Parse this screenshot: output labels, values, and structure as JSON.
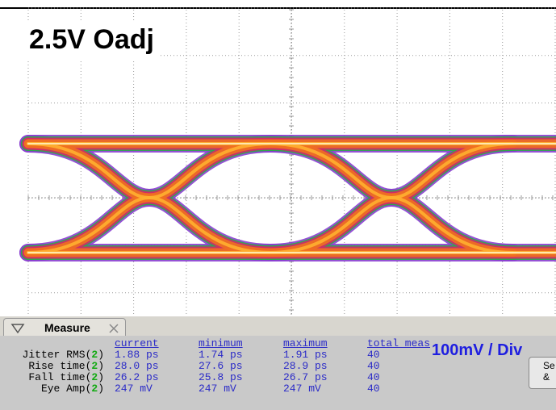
{
  "label": "2.5V Oadj",
  "scale": "100mV / Div",
  "side_button": [
    "Se",
    "&"
  ],
  "measure": {
    "title": "Measure",
    "columns": [
      "current",
      "minimum",
      "maximum",
      "total meas"
    ],
    "open": "(",
    "close": ")",
    "rows": [
      {
        "name": "Jitter RMS",
        "channel": "2",
        "values": [
          "1.88 ps",
          "1.74 ps",
          "1.91 ps",
          "40"
        ]
      },
      {
        "name": "Rise time",
        "channel": "2",
        "values": [
          "28.0 ps",
          "27.6 ps",
          "28.9 ps",
          "40"
        ]
      },
      {
        "name": "Fall time",
        "channel": "2",
        "values": [
          "26.2 ps",
          "25.8 ps",
          "26.7 ps",
          "40"
        ]
      },
      {
        "name": "Eye Amp",
        "channel": "2",
        "values": [
          "247 mV",
          "247 mV",
          "247 mV",
          "40"
        ]
      }
    ]
  }
}
